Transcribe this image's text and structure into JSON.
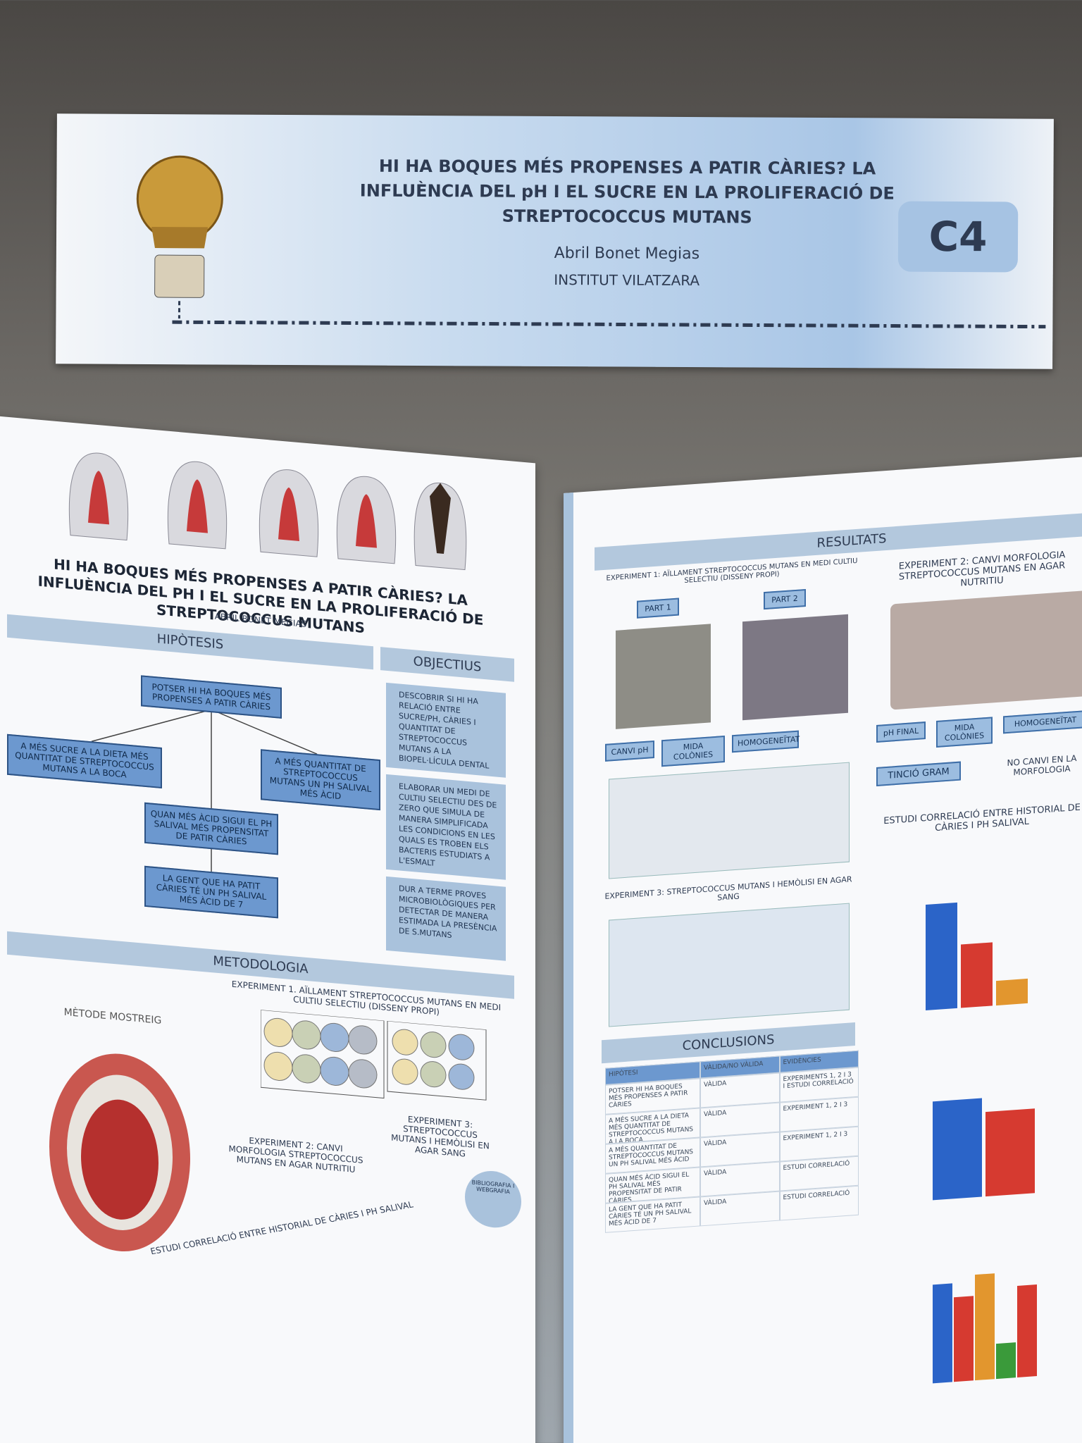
{
  "banner": {
    "title": "HI HA BOQUES MÉS PROPENSES A PATIR CÀRIES? LA INFLUÈNCIA DEL pH I EL SUCRE EN LA PROLIFERACIÓ DE STREPTOCOCCUS MUTANS",
    "author": "Abril Bonet Megias",
    "institute": "INSTITUT VILATZARA",
    "code": "C4"
  },
  "left_poster": {
    "title": "HI HA BOQUES MÉS PROPENSES A PATIR CÀRIES? LA INFLUÈNCIA DEL PH I EL SUCRE EN LA PROLIFERACIÓ DE STREPTOCOCCUS MUTANS",
    "author": "ABRIL BONET MEGIAS",
    "hypothesis": {
      "heading": "HIPÒTESIS",
      "boxes": [
        "POTSER HI HA BOQUES MÉS PROPENSES A PATIR CÀRIES",
        "A MÉS SUCRE A LA DIETA MÉS QUANTITAT DE STREPTOCOCCUS MUTANS A LA BOCA",
        "A MÉS QUANTITAT DE STREPTOCOCCUS MUTANS UN PH SALIVAL MÉS ÀCID",
        "QUAN MÉS ÀCID SIGUI EL PH SALIVAL MÉS PROPENSITAT DE PATIR CÀRIES",
        "LA GENT QUE HA PATIT CÀRIES TÉ UN PH SALIVAL MÉS ÀCID DE 7"
      ]
    },
    "objectives": {
      "heading": "OBJECTIUS",
      "items": [
        "DESCOBRIR SI HI HA RELACIÓ ENTRE SUCRE/PH, CÀRIES I QUANTITAT DE STREPTOCOCCUS MUTANS A LA BIOPEL·LÍCULA DENTAL",
        "ELABORAR UN MEDI DE CULTIU SELECTIU DES DE ZERO QUE SIMULA DE MANERA SIMPLIFICADA LES CONDICIONS EN LES QUALS ES TROBEN ELS BACTERIS ESTUDIATS A L'ESMALT",
        "DUR A TERME PROVES MICROBIOLÒGIQUES PER DETECTAR DE MANERA ESTIMADA LA PRESÈNCIA DE S.MUTANS"
      ]
    },
    "methodology": {
      "heading": "METODOLOGIA",
      "experiment1": "EXPERIMENT 1. AÏLLAMENT STREPTOCOCCUS MUTANS EN MEDI CULTIU SELECTIU (DISSENY PROPI)",
      "experiment2": "EXPERIMENT 2: CANVI MORFOLOGIA STREPTOCOCCUS MUTANS EN AGAR NUTRITIU",
      "experiment3": "EXPERIMENT 3: STREPTOCOCCUS MUTANS I HEMÒLISI EN AGAR SANG",
      "sampling": "MÈTODE MOSTREIG",
      "correlation": "ESTUDI CORRELACIÓ ENTRE HISTORIAL DE CÀRIES I PH SALIVAL",
      "bibliography": "BIBLIOGRAFIA I WEBGRAFIA"
    }
  },
  "right_poster": {
    "heading": "RESULTATS",
    "experiment1": "EXPERIMENT 1: AÏLLAMENT STREPTOCOCCUS MUTANS EN MEDI CULTIU SELECTIU (DISSENY PROPI)",
    "parts": [
      "PART 1",
      "PART 2"
    ],
    "tags": [
      "CANVI pH",
      "MIDA COLÒNIES",
      "HOMOGENEÏTAT"
    ],
    "experiment3": "EXPERIMENT 3: STREPTOCOCCUS MUTANS I HEMÒLISI EN AGAR SANG",
    "conclusions": {
      "heading": "CONCLUSIONS",
      "columns": [
        "HIPÒTESI",
        "VÀLIDA/NO VÀLIDA",
        "EVIDÈNCIES"
      ],
      "validity": [
        "VÀLIDA",
        "VÀLIDA",
        "VÀLIDA",
        "VÀLIDA",
        "VÀLIDA"
      ],
      "evidence": [
        "EXPERIMENTS 1, 2 I 3 I ESTUDI CORRELACIÓ",
        "EXPERIMENT 1, 2 I 3",
        "EXPERIMENT 1, 2 I 3",
        "ESTUDI CORRELACIÓ",
        "ESTUDI CORRELACIÓ"
      ]
    },
    "experiment2": "EXPERIMENT 2: CANVI MORFOLOGIA STREPTOCOCCUS MUTANS EN AGAR NUTRITIU",
    "tags2": [
      "pH FINAL",
      "MIDA COLÒNIES",
      "HOMOGENEÏTAT"
    ],
    "gram": "TINCIÓ GRAM",
    "no_change": "NO CANVI EN LA MORFOLOGIA",
    "correlation": "ESTUDI CORRELACIÓ ENTRE HISTORIAL DE CÀRIES I PH SALIVAL"
  }
}
